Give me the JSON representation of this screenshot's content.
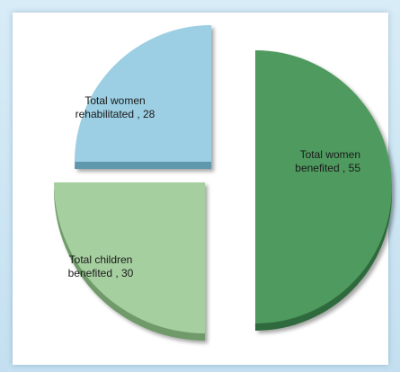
{
  "chart_data": {
    "type": "pie",
    "title": "",
    "slices": [
      {
        "label_line1": "Total women",
        "label_line2": "benefited , 55",
        "value": 55,
        "color": "#4f9a5e",
        "side": "#2f6b3c"
      },
      {
        "label_line1": "Total children",
        "label_line2": "benefited , 30",
        "value": 30,
        "color": "#a6cfa0",
        "side": "#6f9a6a"
      },
      {
        "label_line1": "Total women",
        "label_line2": "rehabilitated , 28",
        "value": 28,
        "color": "#9ccfe3",
        "side": "#5f97ad"
      }
    ],
    "legend": "none",
    "exploded": true
  }
}
